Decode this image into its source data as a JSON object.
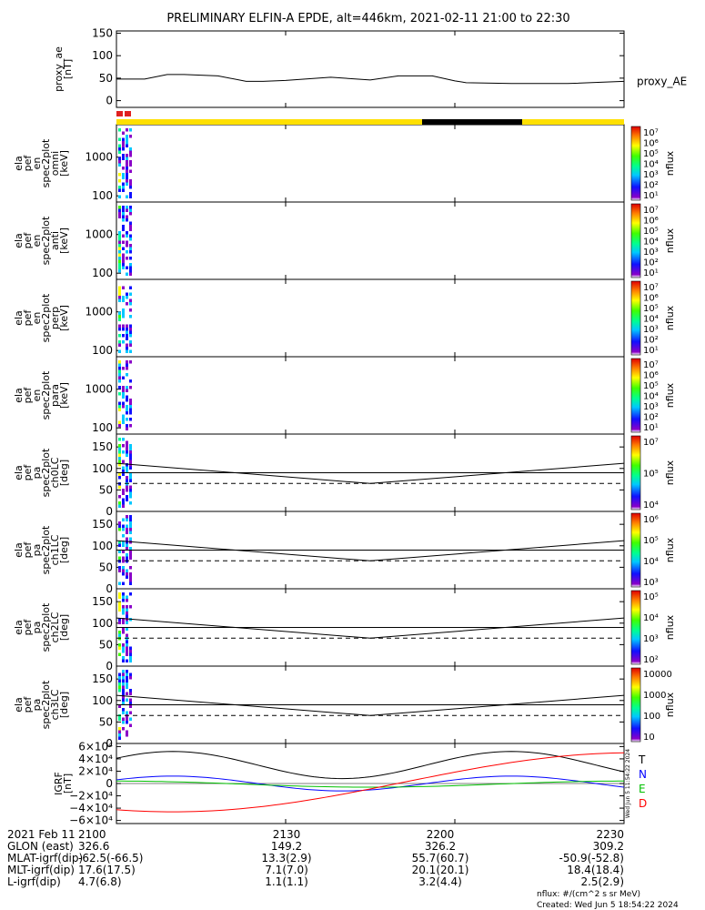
{
  "title": "PRELIMINARY ELFIN-A EPDE, alt=446km, 2021-02-11 21:00 to 22:30",
  "chart_data": [
    {
      "type": "line",
      "panel": "proxy_ae",
      "ylabel": [
        "proxy_ae",
        "[nT]"
      ],
      "ylim": [
        -15,
        155
      ],
      "yticks": [
        "150",
        "100",
        "50",
        "0"
      ],
      "ytick_values": [
        150,
        100,
        50,
        0
      ],
      "legend": "proxy_AE",
      "x_minutes": [
        0,
        5,
        9,
        12,
        18,
        23,
        26,
        30,
        38,
        45,
        50,
        56,
        60,
        62,
        70,
        80,
        90
      ],
      "values": [
        48,
        48,
        58,
        58,
        55,
        43,
        43,
        45,
        52,
        46,
        55,
        55,
        44,
        40,
        38,
        38,
        43
      ]
    },
    {
      "type": "heatmap",
      "panel": "ela_pef_en_spec2plot_omni",
      "ylabel": [
        "ela",
        "pef",
        "en",
        "spec2plot",
        "omni",
        "[keV]"
      ],
      "yticks": [
        "1000",
        "100"
      ],
      "colorbar_label": "nflux",
      "colorbar_ticks": [
        "10⁷",
        "10⁶",
        "10⁵",
        "10⁴",
        "10³",
        "10²",
        "10¹"
      ]
    },
    {
      "type": "heatmap",
      "panel": "ela_pef_en_spec2plot_anti",
      "ylabel": [
        "ela",
        "pef",
        "en",
        "spec2plot",
        "anti",
        "[keV]"
      ],
      "yticks": [
        "1000",
        "100"
      ],
      "colorbar_label": "nflux",
      "colorbar_ticks": [
        "10⁷",
        "10⁶",
        "10⁵",
        "10⁴",
        "10³",
        "10²",
        "10¹"
      ]
    },
    {
      "type": "heatmap",
      "panel": "ela_pef_en_spec2plot_perp",
      "ylabel": [
        "ela",
        "pef",
        "en",
        "spec2plot",
        "perp",
        "[keV]"
      ],
      "yticks": [
        "1000",
        "100"
      ],
      "colorbar_label": "nflux",
      "colorbar_ticks": [
        "10⁷",
        "10⁶",
        "10⁵",
        "10⁴",
        "10³",
        "10²",
        "10¹"
      ]
    },
    {
      "type": "heatmap",
      "panel": "ela_pef_en_spec2plot_para",
      "ylabel": [
        "ela",
        "pef",
        "en",
        "spec2plot",
        "para",
        "[keV]"
      ],
      "yticks": [
        "1000",
        "100"
      ],
      "colorbar_label": "nflux",
      "colorbar_ticks": [
        "10⁷",
        "10⁶",
        "10⁵",
        "10⁴",
        "10³",
        "10²",
        "10¹"
      ]
    },
    {
      "type": "heatmap",
      "panel": "ela_pef_pa_spec2plot_ch0LC",
      "ylabel": [
        "ela",
        "pef",
        "pa",
        "spec2plot",
        "ch0LC",
        "[deg]"
      ],
      "ylim": [
        0,
        180
      ],
      "yticks": [
        "150",
        "100",
        "50",
        "0"
      ],
      "ytick_values": [
        150,
        100,
        50,
        0
      ],
      "colorbar_label": "nflux",
      "colorbar_ticks": [
        "10⁷",
        "10⁵",
        "10⁴"
      ],
      "lines": {
        "solid_deg": [
          112,
          65,
          112
        ],
        "solid_flat_deg": 90,
        "dashed_deg": 65
      }
    },
    {
      "type": "heatmap",
      "panel": "ela_pef_pa_spec2plot_ch1LC",
      "ylabel": [
        "ela",
        "pef",
        "pa",
        "spec2plot",
        "ch1LC",
        "[deg]"
      ],
      "ylim": [
        0,
        180
      ],
      "yticks": [
        "150",
        "100",
        "50",
        "0"
      ],
      "ytick_values": [
        150,
        100,
        50,
        0
      ],
      "colorbar_label": "nflux",
      "colorbar_ticks": [
        "10⁶",
        "10⁵",
        "10⁴",
        "10³"
      ],
      "lines": {
        "solid_deg": [
          112,
          65,
          112
        ],
        "solid_flat_deg": 90,
        "dashed_deg": 65
      }
    },
    {
      "type": "heatmap",
      "panel": "ela_pef_pa_spec2plot_ch2LC",
      "ylabel": [
        "ela",
        "pef",
        "pa",
        "spec2plot",
        "ch2LC",
        "[deg]"
      ],
      "ylim": [
        0,
        180
      ],
      "yticks": [
        "150",
        "100",
        "50",
        "0"
      ],
      "ytick_values": [
        150,
        100,
        50,
        0
      ],
      "colorbar_label": "nflux",
      "colorbar_ticks": [
        "10⁵",
        "10⁴",
        "10³",
        "10²"
      ],
      "lines": {
        "solid_deg": [
          112,
          65,
          112
        ],
        "solid_flat_deg": 90,
        "dashed_deg": 65
      }
    },
    {
      "type": "heatmap",
      "panel": "ela_pef_pa_spec2plot_ch3LC",
      "ylabel": [
        "ela",
        "pef",
        "pa",
        "spec2plot",
        "ch3LC",
        "[deg]"
      ],
      "ylim": [
        0,
        180
      ],
      "yticks": [
        "150",
        "100",
        "50",
        "0"
      ],
      "ytick_values": [
        150,
        100,
        50,
        0
      ],
      "colorbar_label": "nflux",
      "colorbar_ticks": [
        "10000",
        "1000",
        "100",
        "10"
      ],
      "lines": {
        "solid_deg": [
          112,
          65,
          112
        ],
        "solid_flat_deg": 90,
        "dashed_deg": 65
      }
    },
    {
      "type": "line",
      "panel": "IGRF",
      "ylabel": [
        "IGRF",
        "[nT]"
      ],
      "ylim": [
        -65000,
        65000
      ],
      "yticks": [
        "6×10⁴",
        "4×10⁴",
        "2×10⁴",
        "0",
        "−2×10⁴",
        "−4×10⁴",
        "−6×10⁴"
      ],
      "ytick_values": [
        60000,
        40000,
        20000,
        0,
        -20000,
        -40000,
        -60000
      ],
      "series": [
        {
          "name": "T",
          "color": "#000000"
        },
        {
          "name": "N",
          "color": "#0000ff"
        },
        {
          "name": "E",
          "color": "#00c000"
        },
        {
          "name": "D",
          "color": "#ff0000"
        }
      ],
      "side_text": "Wed Jun  5 11:54:22 2024"
    }
  ],
  "time_axis": {
    "ticks": [
      "2100",
      "2130",
      "2200",
      "2230"
    ],
    "tick_minutes": [
      0,
      30,
      60,
      90
    ]
  },
  "footer": {
    "rows": [
      {
        "label": "2021 Feb 11",
        "values": [
          "2100",
          "2130",
          "2200",
          "2230"
        ]
      },
      {
        "label": "GLON (east)",
        "values": [
          "326.6",
          "149.2",
          "326.2",
          "309.2"
        ]
      },
      {
        "label": "MLAT-igrf(dip)",
        "values": [
          "-62.5(-66.5)",
          "13.3(2.9)",
          "55.7(60.7)",
          "-50.9(-52.8)"
        ]
      },
      {
        "label": "MLT-igrf(dip)",
        "values": [
          "17.6(17.5)",
          "7.1(7.0)",
          "20.1(20.1)",
          "18.4(18.4)"
        ]
      },
      {
        "label": "L-igrf(dip)",
        "values": [
          "4.7(6.8)",
          "1.1(1.1)",
          "3.2(4.4)",
          "2.5(2.9)"
        ]
      }
    ],
    "units_note": "nflux: #/(cm^2 s sr MeV)",
    "created": "Created: Wed Jun  5 18:54:22 2024"
  },
  "colors": {
    "sun_bar": "#ffe000",
    "eclipse_bar": "#000000",
    "science_marker": "#e02020"
  }
}
